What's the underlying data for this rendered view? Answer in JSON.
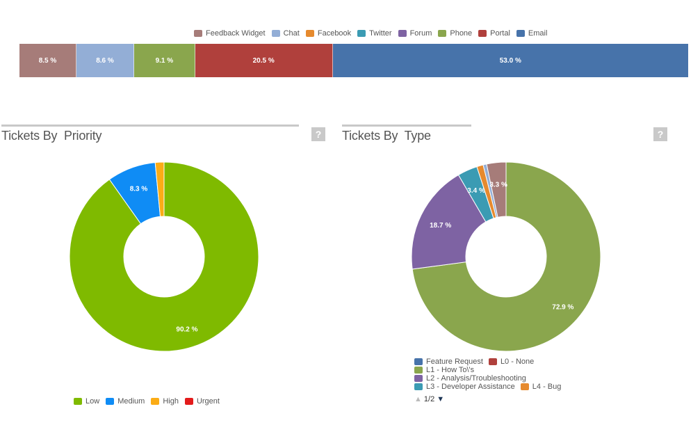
{
  "channels": {
    "legend": [
      {
        "label": "Feedback Widget",
        "color": "#a67c79"
      },
      {
        "label": "Chat",
        "color": "#93aed6"
      },
      {
        "label": "Facebook",
        "color": "#e68a2e"
      },
      {
        "label": "Twitter",
        "color": "#3b9bb3"
      },
      {
        "label": "Forum",
        "color": "#7e63a3"
      },
      {
        "label": "Phone",
        "color": "#8aa64d"
      },
      {
        "label": "Portal",
        "color": "#b0403c"
      },
      {
        "label": "Email",
        "color": "#4773aa"
      }
    ]
  },
  "priority_panel": {
    "title": "Tickets By  Priority",
    "help": "?",
    "legend": [
      {
        "label": "Low",
        "color": "#7fba00"
      },
      {
        "label": "Medium",
        "color": "#0f8cf5"
      },
      {
        "label": "High",
        "color": "#fbac16"
      },
      {
        "label": "Urgent",
        "color": "#e31b1b"
      }
    ]
  },
  "type_panel": {
    "title": "Tickets By  Type",
    "help": "?",
    "legend": [
      {
        "label": "Feature Request",
        "color": "#4773aa"
      },
      {
        "label": "L0 - None",
        "color": "#b0403c"
      },
      {
        "label": "L1 - How To\\'s",
        "color": "#8aa64d"
      },
      {
        "label": "L2 - Analysis/Troubleshooting",
        "color": "#7e63a3"
      },
      {
        "label": "L3 - Developer Assistance",
        "color": "#3b9bb3"
      },
      {
        "label": "L4 - Bug",
        "color": "#e68a2e"
      }
    ],
    "pager": {
      "text": "1/2",
      "up": "▲",
      "down": "▼"
    }
  },
  "chart_data": [
    {
      "type": "bar",
      "orientation": "horizontal-stacked",
      "series": [
        {
          "name": "Feedback Widget",
          "value": 8.5,
          "label": "8.5 %"
        },
        {
          "name": "Chat",
          "value": 8.6,
          "label": "8.6 %"
        },
        {
          "name": "Phone",
          "value": 9.1,
          "label": "9.1 %"
        },
        {
          "name": "Portal",
          "value": 20.5,
          "label": "20.5 %"
        },
        {
          "name": "Email",
          "value": 53.0,
          "label": "53.0 %"
        }
      ],
      "legend": "top"
    },
    {
      "type": "pie",
      "donut": true,
      "title": "Tickets By  Priority",
      "slices": [
        {
          "name": "Low",
          "value": 90.2,
          "label": "90.2 %",
          "color": "#7fba00"
        },
        {
          "name": "Medium",
          "value": 8.3,
          "label": "8.3 %",
          "color": "#0f8cf5"
        },
        {
          "name": "High",
          "value": 1.5,
          "label": "",
          "color": "#fbac16"
        },
        {
          "name": "Urgent",
          "value": 0.0,
          "label": "",
          "color": "#e31b1b"
        }
      ],
      "legend": "bottom"
    },
    {
      "type": "pie",
      "donut": true,
      "title": "Tickets By  Type",
      "slices": [
        {
          "name": "L1 - How To\\'s",
          "value": 72.9,
          "label": "72.9 %",
          "color": "#8aa64d"
        },
        {
          "name": "L2 - Analysis/Troubleshooting",
          "value": 18.7,
          "label": "18.7 %",
          "color": "#7e63a3"
        },
        {
          "name": "L3 - Developer Assistance",
          "value": 3.4,
          "label": "3.4 %",
          "color": "#3b9bb3"
        },
        {
          "name": "L4 - Bug",
          "value": 1.1,
          "label": "",
          "color": "#e68a2e"
        },
        {
          "name": "Feature Request",
          "value": 0.6,
          "label": "",
          "color": "#93aed6"
        },
        {
          "name": "L0 - None",
          "value": 3.3,
          "label": "3.3 %",
          "color": "#a67c79"
        }
      ],
      "legend": "bottom"
    }
  ]
}
